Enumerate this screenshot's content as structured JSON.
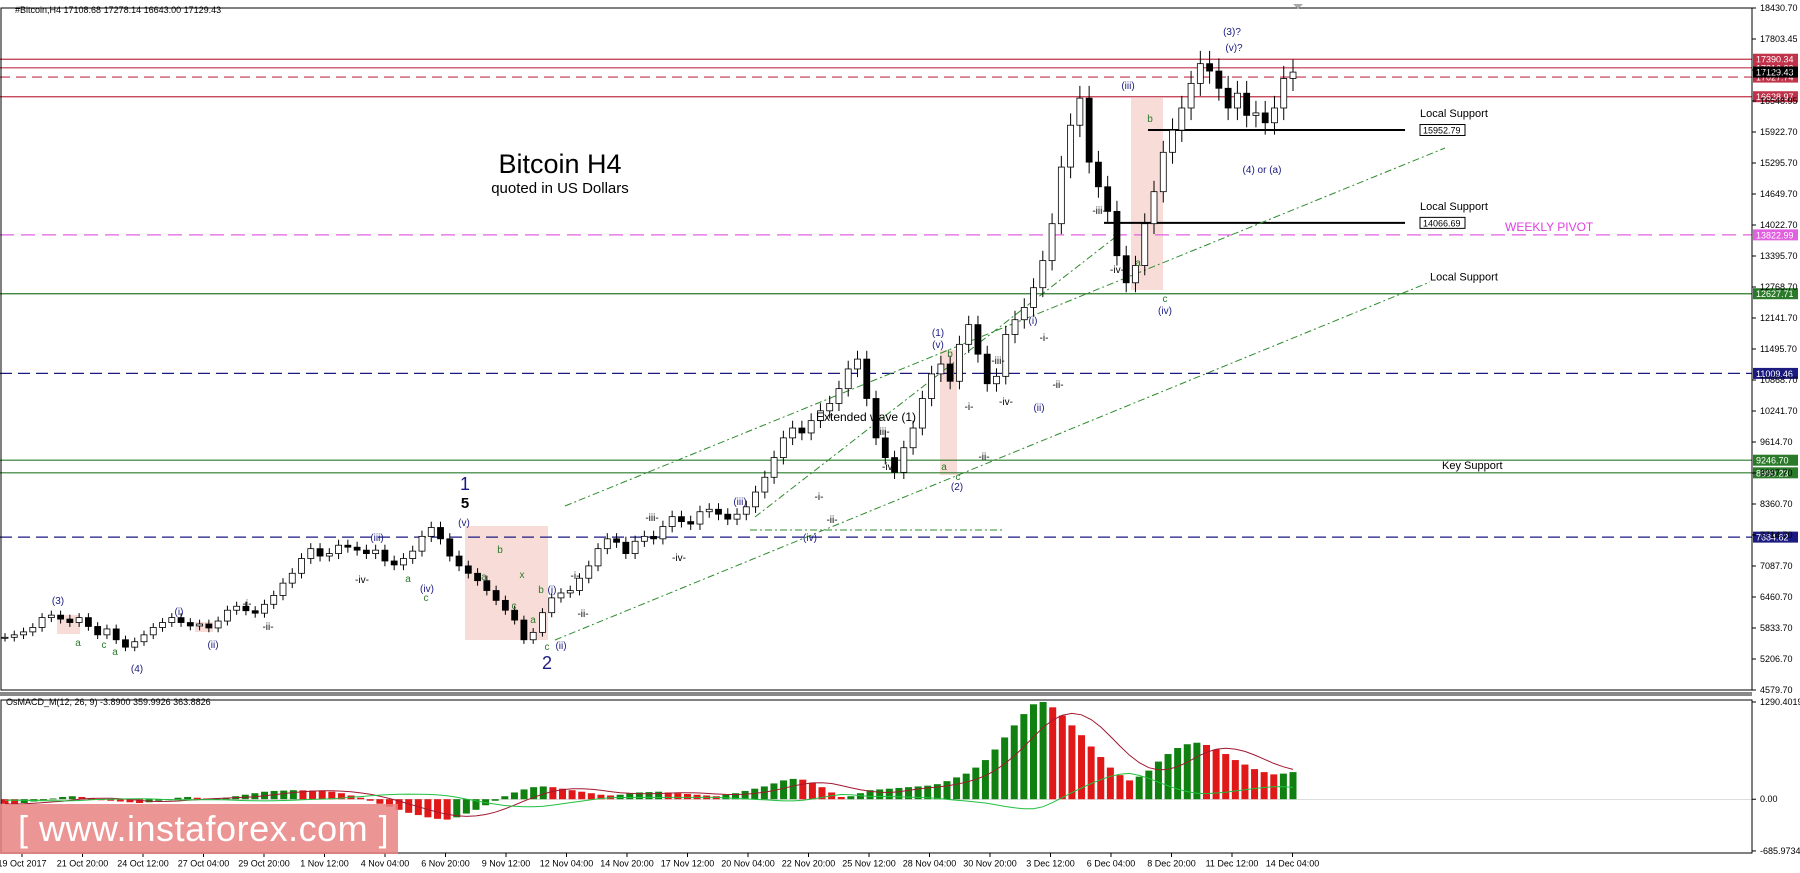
{
  "header": {
    "symbol_info": "#Bitcoin,H4  17108.68 17278.14 16643.00 17129.43"
  },
  "title": {
    "main": "Bitcoin H4",
    "sub": "quoted in US Dollars"
  },
  "watermark": "[ www.instaforex.com ]",
  "chart_data": [
    {
      "type": "candlestick",
      "title": "Bitcoin H4",
      "subtitle": "quoted in US Dollars",
      "ylim": [
        4579.7,
        18430.7
      ],
      "y_ticks": [
        "18430.70",
        "17803.45",
        "17176.20",
        "16548.95",
        "15922.70",
        "15295.70",
        "14649.70",
        "14022.70",
        "13395.70",
        "12768.70",
        "12141.70",
        "11495.70",
        "10868.70",
        "10241.70",
        "9614.70",
        "8987.70",
        "8360.70",
        "7714.70",
        "7087.70",
        "6460.70",
        "5833.70",
        "5206.70",
        "4579.70"
      ],
      "x_ticks": [
        "19 Oct 2017",
        "21 Oct 20:00",
        "24 Oct 12:00",
        "27 Oct 04:00",
        "29 Oct 20:00",
        "1 Nov 12:00",
        "4 Nov 04:00",
        "6 Nov 20:00",
        "9 Nov 12:00",
        "12 Nov 04:00",
        "14 Nov 20:00",
        "17 Nov 12:00",
        "20 Nov 04:00",
        "22 Nov 20:00",
        "25 Nov 12:00",
        "28 Nov 04:00",
        "30 Nov 20:00",
        "3 Dec 12:00",
        "6 Dec 04:00",
        "8 Dec 20:00",
        "11 Dec 12:00",
        "14 Dec 04:00"
      ],
      "price_path": [
        5650,
        5700,
        5760,
        5850,
        6050,
        6100,
        6020,
        5950,
        6050,
        5870,
        5700,
        5820,
        5600,
        5450,
        5560,
        5700,
        5850,
        5950,
        6050,
        5950,
        5880,
        5920,
        5840,
        5980,
        6200,
        6280,
        6190,
        6140,
        6320,
        6500,
        6750,
        6950,
        7250,
        7450,
        7300,
        7350,
        7520,
        7480,
        7420,
        7350,
        7420,
        7200,
        7120,
        7250,
        7400,
        7700,
        7880,
        7650,
        7300,
        7100,
        6950,
        6800,
        6600,
        6400,
        6200,
        6000,
        5600,
        5750,
        6150,
        6450,
        6550,
        6600,
        6850,
        7100,
        7450,
        7650,
        7580,
        7350,
        7600,
        7700,
        7650,
        7900,
        8100,
        8000,
        7950,
        8200,
        8250,
        8150,
        8050,
        8150,
        8300,
        8600,
        8900,
        9300,
        9700,
        9900,
        9800,
        10050,
        10250,
        10400,
        10700,
        11100,
        11300,
        10500,
        9700,
        9300,
        9000,
        9500,
        9900,
        10500,
        11000,
        11200,
        10850,
        11600,
        12000,
        11400,
        10800,
        10950,
        11800,
        12100,
        12350,
        12750,
        13300,
        14050,
        15200,
        16050,
        16600,
        15300,
        14800,
        14300,
        13400,
        12850,
        13200,
        14050,
        14700,
        15500,
        15950,
        16400,
        16900,
        17300,
        17150,
        16800,
        16400,
        16700,
        16250,
        16300,
        16100,
        16400,
        17000,
        17129
      ],
      "levels": [
        {
          "value": 17390.34,
          "label": "17390.34",
          "kind": "resistance",
          "color": "#c0324a"
        },
        {
          "value": 17216.33,
          "label": "17216.33",
          "kind": "resistance",
          "color": "#c0324a"
        },
        {
          "value": 17027.74,
          "label": "17027.74",
          "kind": "resistance",
          "color": "#c0324a"
        },
        {
          "value": 16628.97,
          "label": "16628.97",
          "kind": "resistance",
          "color": "#c0324a"
        },
        {
          "value": 15952.79,
          "label": "15952.79",
          "kind": "local-support",
          "color": "#000000",
          "caption": "Local Support"
        },
        {
          "value": 14066.69,
          "label": "14066.69",
          "kind": "local-support",
          "color": "#000000",
          "caption": "Local Support"
        },
        {
          "value": 13822.99,
          "label": "13822.99",
          "kind": "weekly-pivot",
          "color": "#e060e0",
          "caption": "WEEKLY PIVOT"
        },
        {
          "value": 12627.71,
          "label": "12627.71",
          "kind": "local-support",
          "color": "#2a7a2a",
          "caption": "Local Support"
        },
        {
          "value": 11009.46,
          "label": "11009.46",
          "kind": "blue-dashed",
          "color": "#1a1a80"
        },
        {
          "value": 9246.7,
          "label": "9246.70",
          "kind": "key-support",
          "color": "#2a7a2a"
        },
        {
          "value": 8990.23,
          "label": "8990.23",
          "kind": "key-support",
          "color": "#2a7a2a",
          "caption": "Key Support"
        },
        {
          "value": 7684.62,
          "label": "7684.62",
          "kind": "blue-dashed",
          "color": "#1a1a80"
        }
      ],
      "current_price": {
        "value": 17129.43,
        "label": "17129.43"
      },
      "annotations": {
        "extended_wave": "Extended wave (1)",
        "wave_labels": [
          "(3)",
          "a",
          "c",
          "a",
          "(4)",
          "(i)",
          "(ii)",
          "-i-",
          "-ii-",
          "(iii)",
          "-iv-",
          "a",
          "(iv)",
          "c",
          "(v)",
          "1",
          "5",
          "b",
          "a",
          "x",
          "c",
          "b",
          "a",
          "c",
          "2",
          "(i)",
          "(ii)",
          "-i-",
          "-ii-",
          "-iii-",
          "-iv-",
          "(iii)",
          "-i-",
          "-ii-",
          "(iv)",
          "-iii-",
          "-iv-",
          "(1)",
          "(v)",
          "b",
          "a",
          "c",
          "(2)",
          "-i-",
          "-ii-",
          "-iii-",
          "-iv-",
          "(i)",
          "-i-",
          "-ii-",
          "(ii)",
          "-iii-",
          "-iv-",
          "(iii)",
          "b",
          "a",
          "c",
          "(iv)",
          "(3)?",
          "(v)?",
          "(4) or (a)"
        ]
      }
    },
    {
      "type": "bar",
      "title": "OsMACD_M(12, 26, 9) -3.8900 359.9926 363.8826",
      "ylim": [
        -700,
        1290.4019
      ],
      "y_ticks": [
        "1290.4019",
        "0.00",
        "-685.9734"
      ],
      "histogram": [
        -60,
        -70,
        -50,
        -30,
        -10,
        10,
        30,
        40,
        30,
        10,
        -10,
        -20,
        -30,
        -40,
        -50,
        -40,
        -20,
        0,
        20,
        30,
        20,
        10,
        10,
        20,
        40,
        60,
        80,
        100,
        110,
        115,
        120,
        118,
        115,
        110,
        100,
        80,
        50,
        20,
        -20,
        -60,
        -100,
        -140,
        -180,
        -210,
        -240,
        -260,
        -270,
        -240,
        -190,
        -140,
        -80,
        -20,
        40,
        90,
        130,
        160,
        170,
        160,
        140,
        120,
        100,
        80,
        60,
        50,
        60,
        80,
        90,
        95,
        100,
        90,
        80,
        70,
        60,
        50,
        40,
        60,
        80,
        110,
        140,
        170,
        210,
        250,
        270,
        260,
        220,
        160,
        90,
        30,
        40,
        80,
        120,
        130,
        140,
        150,
        160,
        170,
        180,
        200,
        240,
        290,
        340,
        420,
        520,
        660,
        820,
        980,
        1130,
        1260,
        1290,
        1220,
        1110,
        980,
        850,
        700,
        560,
        420,
        320,
        250,
        300,
        380,
        500,
        600,
        680,
        730,
        750,
        720,
        660,
        600,
        520,
        460,
        400,
        360,
        330,
        340,
        360
      ],
      "signal": [
        0,
        5,
        10,
        15,
        20,
        25,
        30,
        35,
        40,
        45,
        50,
        55,
        60,
        65,
        70,
        75,
        80,
        85,
        90,
        95,
        100
      ],
      "colors": {
        "positive_up": "#108010",
        "positive_down": "#e01818",
        "signal": "#a01830",
        "macd": "#20c040"
      }
    }
  ]
}
